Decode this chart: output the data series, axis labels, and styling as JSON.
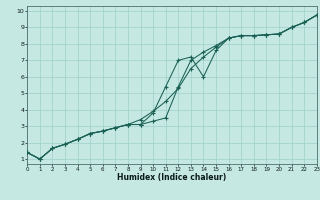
{
  "xlabel": "Humidex (Indice chaleur)",
  "xlim": [
    0,
    23
  ],
  "ylim": [
    0.7,
    10.3
  ],
  "xticks": [
    0,
    1,
    2,
    3,
    4,
    5,
    6,
    7,
    8,
    9,
    10,
    11,
    12,
    13,
    14,
    15,
    16,
    17,
    18,
    19,
    20,
    21,
    22,
    23
  ],
  "yticks": [
    1,
    2,
    3,
    4,
    5,
    6,
    7,
    8,
    9,
    10
  ],
  "bg_color": "#c5e8e2",
  "grid_color": "#9ecfca",
  "line_color": "#1a6055",
  "lines": [
    {
      "x": [
        0,
        1,
        2,
        3,
        4,
        5,
        6,
        7,
        8,
        9,
        10,
        11,
        12,
        13,
        14,
        15,
        16,
        17,
        18,
        19,
        20,
        21,
        22,
        23
      ],
      "y": [
        1.4,
        1.0,
        1.65,
        1.9,
        2.2,
        2.55,
        2.7,
        2.9,
        3.1,
        3.4,
        3.9,
        4.5,
        5.3,
        6.5,
        7.2,
        7.8,
        8.35,
        8.5,
        8.5,
        8.55,
        8.6,
        9.0,
        9.3,
        9.75
      ]
    },
    {
      "x": [
        0,
        1,
        2,
        3,
        4,
        5,
        6,
        7,
        8,
        9,
        10,
        11,
        12,
        13,
        14,
        15,
        16,
        17,
        18,
        19,
        20,
        21,
        22,
        23
      ],
      "y": [
        1.4,
        1.0,
        1.65,
        1.9,
        2.2,
        2.55,
        2.7,
        2.9,
        3.1,
        3.1,
        3.3,
        3.5,
        5.4,
        7.0,
        7.5,
        7.9,
        8.35,
        8.5,
        8.5,
        8.55,
        8.6,
        9.0,
        9.3,
        9.75
      ]
    },
    {
      "x": [
        0,
        1,
        2,
        3,
        4,
        5,
        6,
        7,
        8,
        9,
        10,
        11,
        12,
        13,
        14,
        15,
        16,
        17,
        18,
        19,
        20,
        21,
        22,
        23
      ],
      "y": [
        1.4,
        1.0,
        1.65,
        1.9,
        2.2,
        2.55,
        2.7,
        2.9,
        3.1,
        3.1,
        3.8,
        5.4,
        7.0,
        7.2,
        6.0,
        7.6,
        8.35,
        8.5,
        8.5,
        8.55,
        8.6,
        9.0,
        9.3,
        9.75
      ]
    }
  ]
}
